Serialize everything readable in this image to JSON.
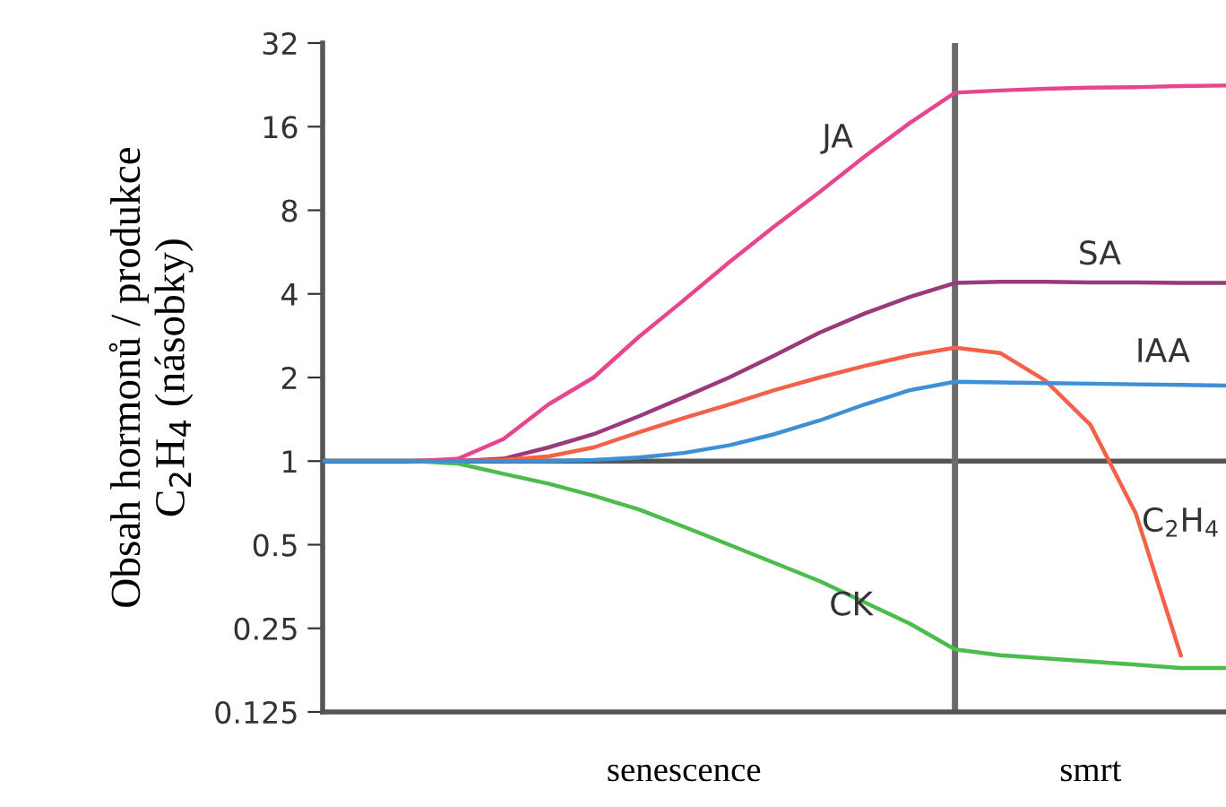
{
  "chart_data": {
    "type": "line",
    "ylabel": "Obsah hormonů / produkce\nC$_{2}$H$_{4}$ (násobky)",
    "log": "y",
    "categories": [
      null,
      null,
      null,
      null,
      null,
      null,
      null,
      null,
      "senescence",
      null,
      null,
      null,
      null,
      null,
      null,
      null,
      null,
      "smrt",
      null,
      null,
      null
    ],
    "ylim": [
      0.125,
      32
    ],
    "yticks": [
      0.125,
      0.25,
      0.5,
      1,
      2,
      4,
      8,
      16,
      32
    ],
    "grid": false,
    "ref_lines": [
      {
        "axis": "y",
        "value": 1,
        "color": "#555555"
      }
    ],
    "series": [
      {
        "name": "JA",
        "color": "#e8458f",
        "values": [
          null,
          null,
          1,
          1.02,
          1.2,
          1.6,
          2.0,
          2.8,
          3.8,
          5.2,
          7.0,
          9.3,
          12.5,
          16.5,
          21.2,
          21.6,
          21.9,
          22.1,
          22.2,
          22.4,
          22.5
        ]
      },
      {
        "name": "SA",
        "color": "#9b3a7a",
        "values": [
          null,
          null,
          null,
          1,
          1.02,
          1.12,
          1.25,
          1.45,
          1.7,
          2.0,
          2.4,
          2.9,
          3.4,
          3.9,
          4.38,
          4.42,
          4.42,
          4.4,
          4.4,
          4.38,
          4.38
        ]
      },
      {
        "name": "IAA",
        "color": "#3d8fd6",
        "values": [
          1,
          1,
          1,
          1,
          1,
          1,
          1.01,
          1.03,
          1.07,
          1.14,
          1.25,
          1.4,
          1.6,
          1.8,
          1.93,
          1.92,
          1.91,
          1.9,
          1.89,
          1.88,
          1.87
        ]
      },
      {
        "name": "C$_{2}$H$_{4}$",
        "color": "#f26148",
        "values": [
          null,
          null,
          null,
          1,
          1.01,
          1.04,
          1.12,
          1.27,
          1.43,
          1.6,
          1.8,
          2.0,
          2.2,
          2.4,
          2.56,
          2.45,
          1.95,
          1.35,
          0.65,
          0.2,
          null
        ]
      },
      {
        "name": "CK",
        "color": "#4cbc4c",
        "values": [
          null,
          null,
          1,
          0.98,
          0.9,
          0.83,
          0.75,
          0.67,
          0.58,
          0.5,
          0.43,
          0.37,
          0.31,
          0.26,
          0.21,
          0.2,
          0.195,
          0.19,
          0.185,
          0.18,
          0.18
        ]
      }
    ]
  }
}
